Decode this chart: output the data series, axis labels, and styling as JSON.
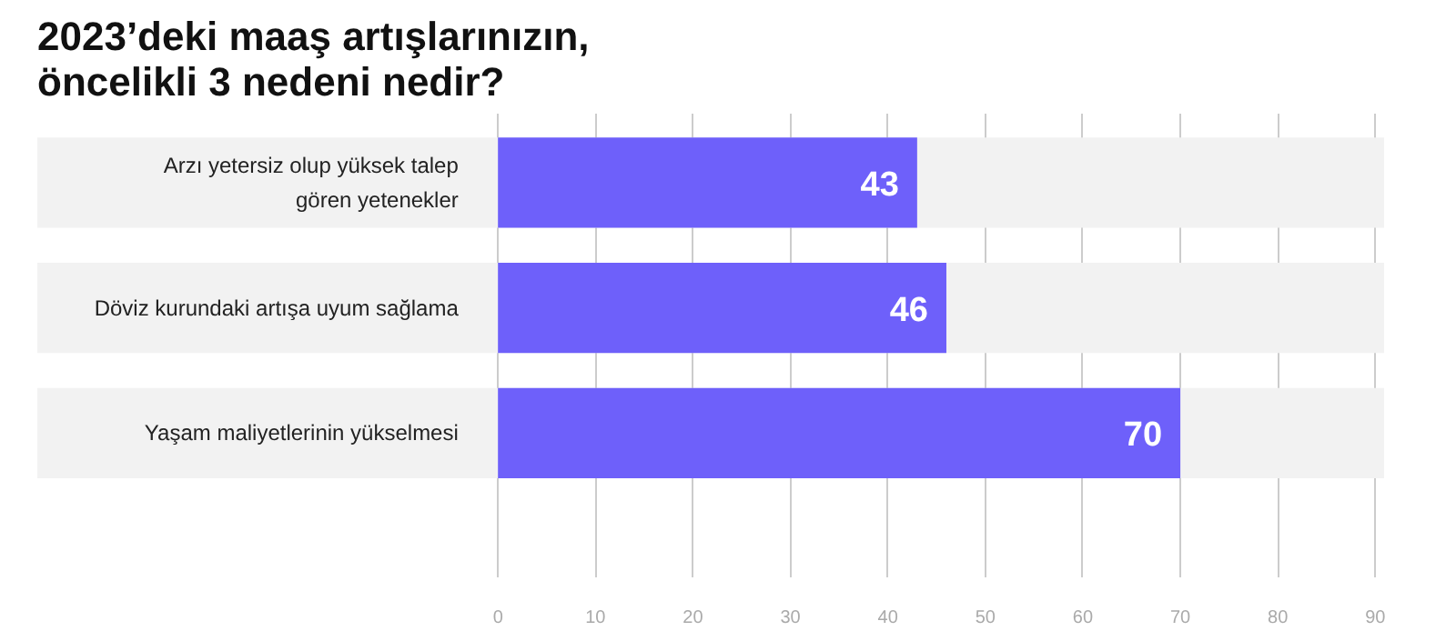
{
  "chart_data": {
    "type": "bar",
    "orientation": "horizontal",
    "title": "2023’deki maaş artışlarınızın,\nöncelikli 3 nedeni nedir?",
    "categories": [
      "Arzı yetersiz olup yüksek talep\ngören yetenekler",
      "Döviz kurundaki artışa uyum sağlama",
      "Yaşam maliyetlerinin yükselmesi"
    ],
    "values": [
      43,
      46,
      70
    ],
    "color": "#6e60fa",
    "data_labels": true,
    "xlim": [
      0,
      90
    ],
    "xticks": [
      0,
      10,
      20,
      30,
      40,
      50,
      60,
      70,
      80,
      90
    ],
    "grid": "x"
  }
}
